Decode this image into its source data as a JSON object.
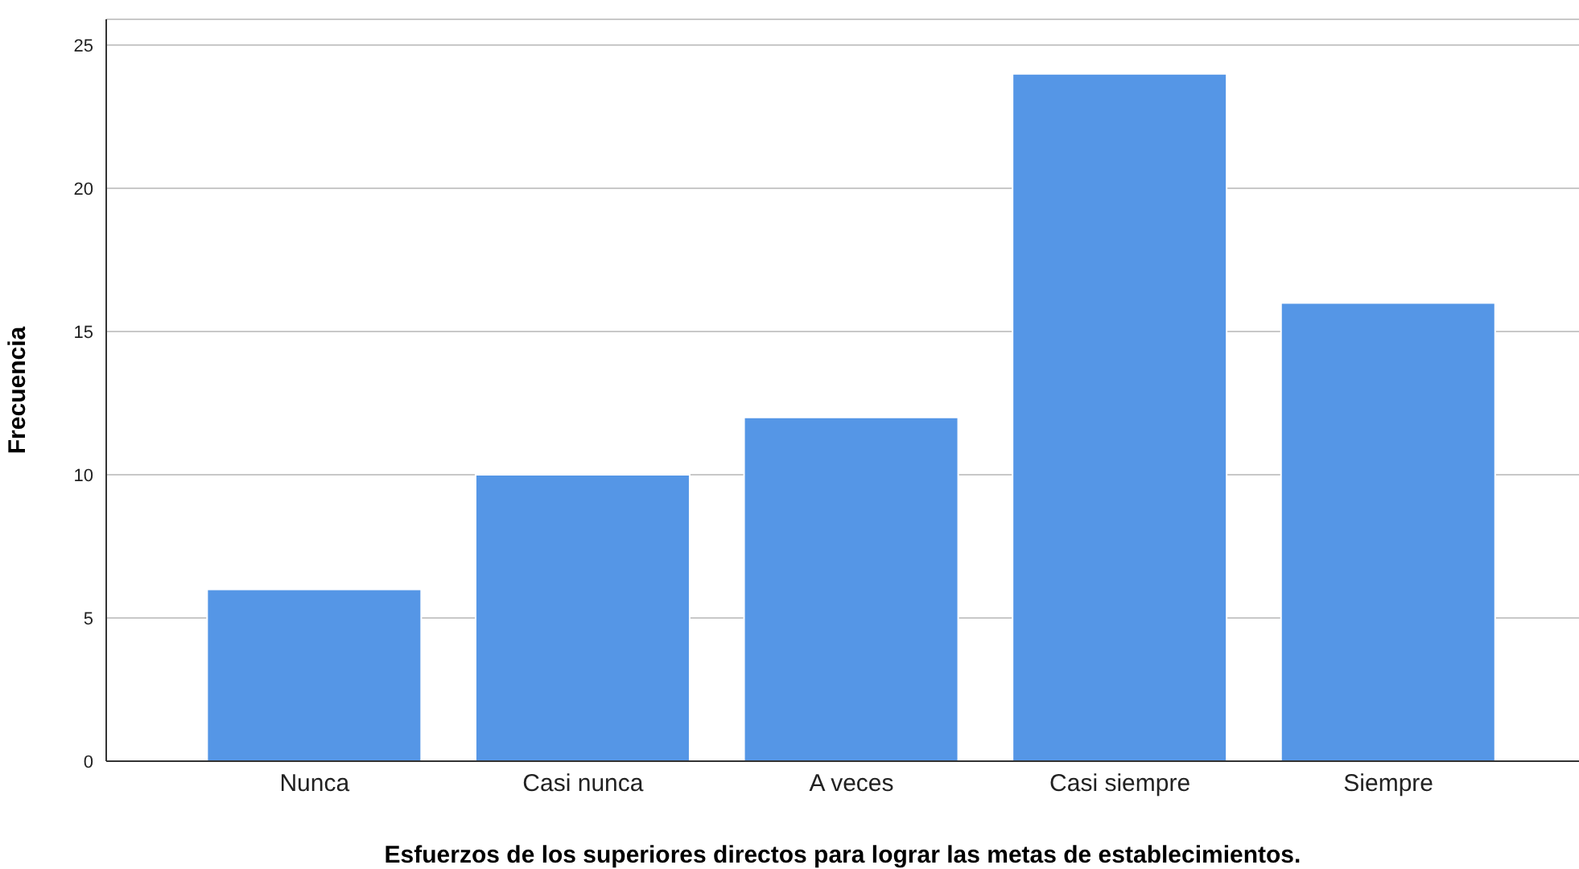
{
  "chart_data": {
    "type": "bar",
    "xlabel": "Esfuerzos de los superiores directos para lograr las metas de establecimientos.",
    "ylabel": "Frecuencia",
    "categories": [
      "Nunca",
      "Casi nunca",
      "A veces",
      "Casi siempre",
      "Siempre"
    ],
    "values": [
      6,
      10,
      12,
      24,
      16
    ],
    "color": "#5596e6",
    "ylim": [
      0,
      25.9
    ],
    "yticks": [
      0,
      5,
      10,
      15,
      20,
      25
    ],
    "grid": "y"
  }
}
